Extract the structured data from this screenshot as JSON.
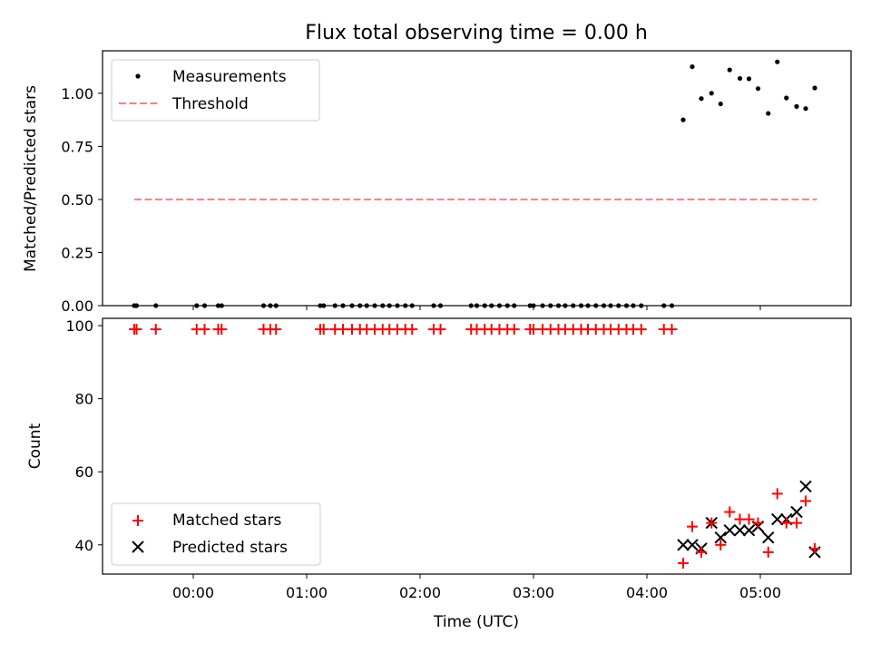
{
  "title": "Flux total observing time = 0.00 h",
  "colors": {
    "measurement": "#000000",
    "threshold": "#ff7f7f",
    "matched": "#ff0000",
    "predicted": "#000000"
  },
  "chart_data": [
    {
      "type": "scatter",
      "panel": "top",
      "title": "Flux total observing time = 0.00 h",
      "ylabel": "Matched/Predicted stars",
      "xlabel": "",
      "xlim": [
        -0.8,
        5.8
      ],
      "ylim": [
        0,
        1.2
      ],
      "yticks": [
        0.0,
        0.25,
        0.5,
        0.75,
        1.0
      ],
      "ytick_labels": [
        "0.00",
        "0.25",
        "0.50",
        "0.75",
        "1.00"
      ],
      "legend": {
        "position": "upper left",
        "entries": [
          "Measurements",
          "Threshold"
        ]
      },
      "threshold": {
        "name": "Threshold",
        "value": 0.5,
        "x_range": [
          -0.52,
          5.5
        ]
      },
      "measurements_zero_x": [
        -0.52,
        -0.5,
        -0.33,
        0.03,
        0.1,
        0.22,
        0.25,
        0.62,
        0.68,
        0.73,
        1.12,
        1.15,
        1.25,
        1.32,
        1.4,
        1.47,
        1.53,
        1.6,
        1.67,
        1.73,
        1.8,
        1.87,
        1.93,
        2.12,
        2.18,
        2.45,
        2.5,
        2.57,
        2.63,
        2.7,
        2.77,
        2.83,
        2.97,
        3.0,
        3.08,
        3.15,
        3.22,
        3.28,
        3.35,
        3.42,
        3.48,
        3.55,
        3.62,
        3.68,
        3.75,
        3.82,
        3.88,
        3.95,
        4.15,
        4.22
      ],
      "measurements": [
        {
          "x": 4.32,
          "y": 0.875
        },
        {
          "x": 4.4,
          "y": 1.125
        },
        {
          "x": 4.48,
          "y": 0.975
        },
        {
          "x": 4.57,
          "y": 1.0
        },
        {
          "x": 4.65,
          "y": 0.95
        },
        {
          "x": 4.73,
          "y": 1.11
        },
        {
          "x": 4.82,
          "y": 1.07
        },
        {
          "x": 4.9,
          "y": 1.068
        },
        {
          "x": 4.98,
          "y": 1.022
        },
        {
          "x": 5.07,
          "y": 0.905
        },
        {
          "x": 5.15,
          "y": 1.148
        },
        {
          "x": 5.23,
          "y": 0.978
        },
        {
          "x": 5.32,
          "y": 0.938
        },
        {
          "x": 5.4,
          "y": 0.928
        },
        {
          "x": 5.48,
          "y": 1.025
        }
      ]
    },
    {
      "type": "scatter",
      "panel": "bottom",
      "xlabel": "Time (UTC)",
      "ylabel": "Count",
      "xlim": [
        -0.8,
        5.8
      ],
      "ylim": [
        32,
        102
      ],
      "yticks": [
        40,
        60,
        80,
        100
      ],
      "ytick_labels": [
        "40",
        "60",
        "80",
        "100"
      ],
      "xticks": [
        0,
        1,
        2,
        3,
        4,
        5
      ],
      "xtick_labels": [
        "00:00",
        "01:00",
        "02:00",
        "03:00",
        "04:00",
        "05:00"
      ],
      "legend": {
        "position": "lower left",
        "entries": [
          "Matched stars",
          "Predicted stars"
        ]
      },
      "matched_flat_y": 99,
      "matched_flat_x": [
        -0.52,
        -0.5,
        -0.33,
        0.03,
        0.1,
        0.22,
        0.25,
        0.62,
        0.68,
        0.73,
        1.12,
        1.15,
        1.25,
        1.32,
        1.4,
        1.47,
        1.53,
        1.6,
        1.67,
        1.73,
        1.8,
        1.87,
        1.93,
        2.12,
        2.18,
        2.45,
        2.5,
        2.57,
        2.63,
        2.7,
        2.77,
        2.83,
        2.97,
        3.0,
        3.08,
        3.15,
        3.22,
        3.28,
        3.35,
        3.42,
        3.48,
        3.55,
        3.62,
        3.68,
        3.75,
        3.82,
        3.88,
        3.95,
        4.15,
        4.22
      ],
      "matched": [
        {
          "x": 4.32,
          "y": 35
        },
        {
          "x": 4.4,
          "y": 45
        },
        {
          "x": 4.48,
          "y": 38
        },
        {
          "x": 4.57,
          "y": 46
        },
        {
          "x": 4.65,
          "y": 40
        },
        {
          "x": 4.73,
          "y": 49
        },
        {
          "x": 4.82,
          "y": 47
        },
        {
          "x": 4.9,
          "y": 47
        },
        {
          "x": 4.98,
          "y": 46
        },
        {
          "x": 5.07,
          "y": 38
        },
        {
          "x": 5.15,
          "y": 54
        },
        {
          "x": 5.23,
          "y": 46
        },
        {
          "x": 5.32,
          "y": 46
        },
        {
          "x": 5.4,
          "y": 52
        },
        {
          "x": 5.48,
          "y": 39
        }
      ],
      "predicted": [
        {
          "x": 4.32,
          "y": 40
        },
        {
          "x": 4.4,
          "y": 40
        },
        {
          "x": 4.48,
          "y": 39
        },
        {
          "x": 4.57,
          "y": 46
        },
        {
          "x": 4.65,
          "y": 42
        },
        {
          "x": 4.73,
          "y": 44
        },
        {
          "x": 4.82,
          "y": 44
        },
        {
          "x": 4.9,
          "y": 44
        },
        {
          "x": 4.98,
          "y": 45
        },
        {
          "x": 5.07,
          "y": 42
        },
        {
          "x": 5.15,
          "y": 47
        },
        {
          "x": 5.23,
          "y": 47
        },
        {
          "x": 5.32,
          "y": 49
        },
        {
          "x": 5.4,
          "y": 56
        },
        {
          "x": 5.48,
          "y": 38
        }
      ]
    }
  ]
}
